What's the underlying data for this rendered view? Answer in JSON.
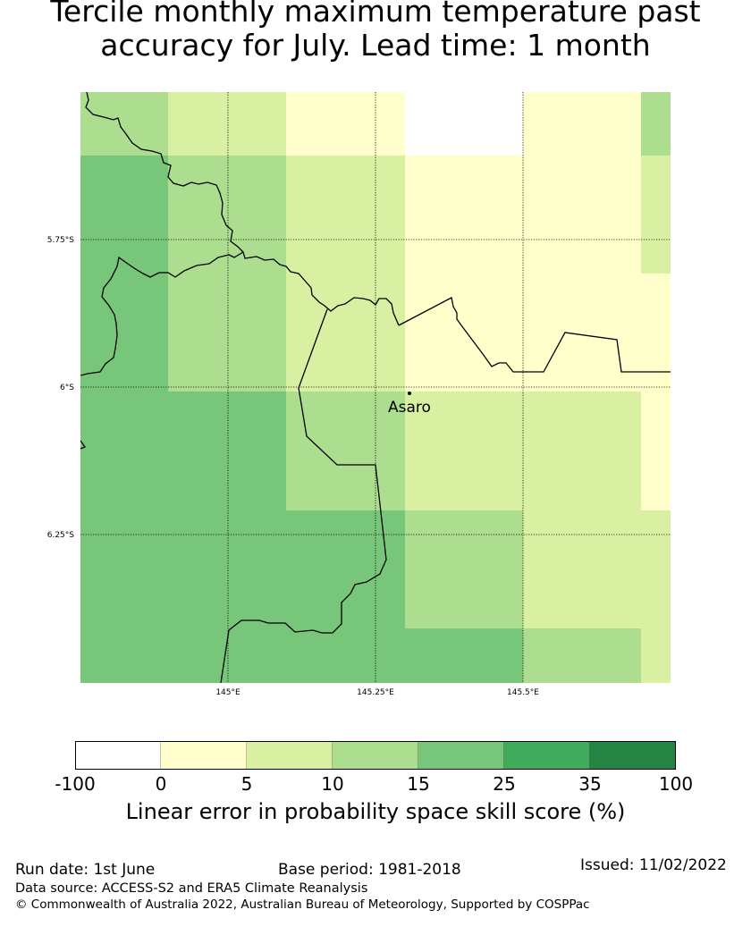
{
  "title": {
    "line1": "Tercile monthly maximum temperature past",
    "line2": "accuracy for July. Lead time: 1 month"
  },
  "map": {
    "place_label": "Asaro",
    "lon_ticks": [
      "145°E",
      "145.25°E",
      "145.5°E"
    ],
    "lat_ticks": [
      "5.75°S",
      "6°S",
      "6.25°S"
    ],
    "colors": {
      "c0": "#ffffff",
      "c1": "#ffffcc",
      "c2": "#d9f0a3",
      "c3": "#addd8e",
      "c4": "#78c679",
      "c5": "#41ab5d",
      "c6": "#238443"
    },
    "grid_cells": [
      [
        "c3",
        "c2",
        "c1",
        "c0",
        "c1",
        "c3"
      ],
      [
        "c4",
        "c3",
        "c2",
        "c1",
        "c1",
        "c2"
      ],
      [
        "c4",
        "c3",
        "c2",
        "c1",
        "c1",
        "c1"
      ],
      [
        "c4",
        "c4",
        "c3",
        "c2",
        "c2",
        "c1"
      ],
      [
        "c4",
        "c4",
        "c4",
        "c3",
        "c2",
        "c2"
      ],
      [
        "c4",
        "c4",
        "c4",
        "c4",
        "c3",
        "c2"
      ]
    ]
  },
  "colorbar": {
    "ticks": [
      "-100",
      "0",
      "5",
      "10",
      "15",
      "25",
      "35",
      "100"
    ],
    "colors": [
      "#ffffff",
      "#ffffcc",
      "#d9f0a3",
      "#addd8e",
      "#78c679",
      "#41ab5d",
      "#238443"
    ],
    "label": "Linear error in probability space skill score (%)"
  },
  "footer": {
    "run_date": "Run date: 1st June",
    "base_period": "Base period: 1981-2018",
    "issued": "Issued: 11/02/2022",
    "data_source": "Data source: ACCESS-S2 and ERA5 Climate Reanalysis",
    "copyright": "© Commonwealth of Australia 2022, Australian Bureau of Meteorology, Supported by COSPPac"
  }
}
